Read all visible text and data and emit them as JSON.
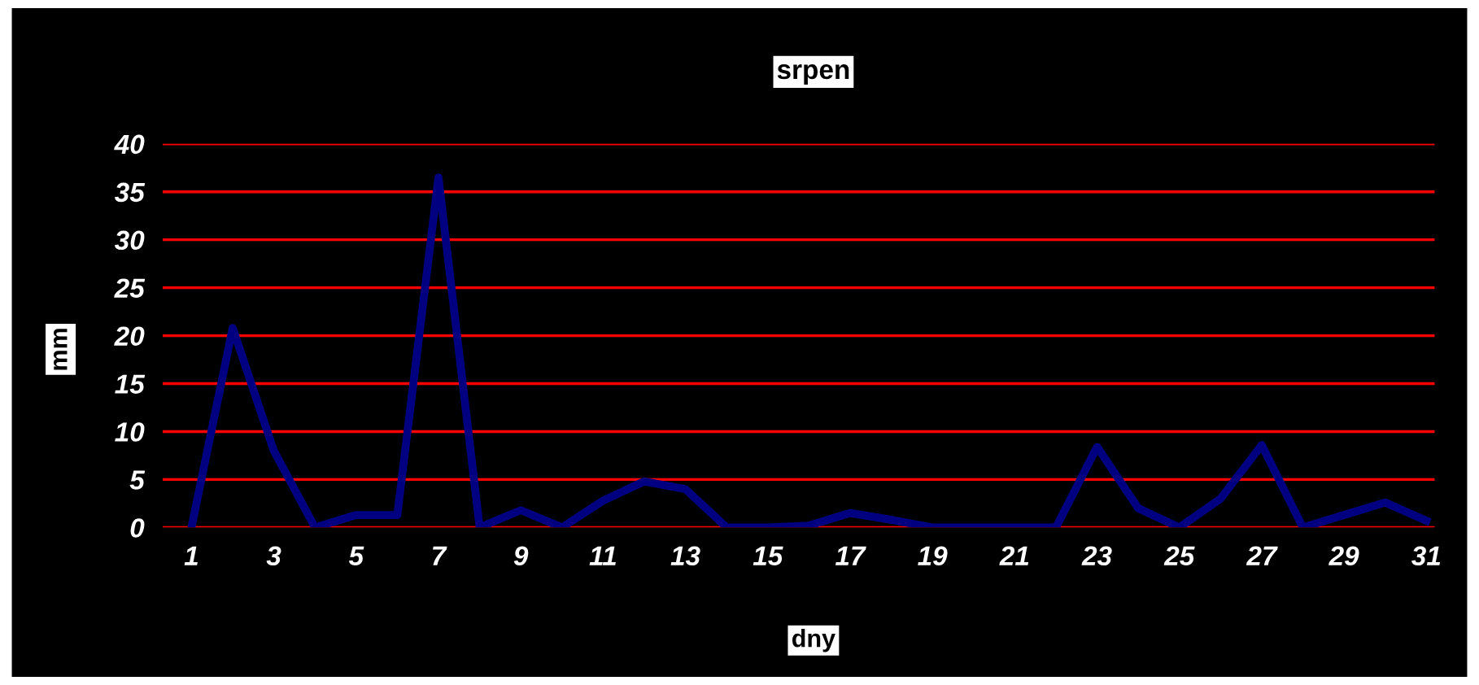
{
  "chart_data": {
    "type": "line",
    "title": "srpen",
    "xlabel": "dny",
    "ylabel": "mm",
    "x": [
      1,
      2,
      3,
      4,
      5,
      6,
      7,
      8,
      9,
      10,
      11,
      12,
      13,
      14,
      15,
      16,
      17,
      18,
      19,
      20,
      21,
      22,
      23,
      24,
      25,
      26,
      27,
      28,
      29,
      30,
      31
    ],
    "series": [
      {
        "color": "#000080",
        "values": [
          0,
          20.8,
          8,
          0,
          1.3,
          1.3,
          36.5,
          0,
          1.8,
          0,
          2.8,
          4.8,
          4,
          0,
          0,
          0.2,
          1.5,
          0.8,
          0,
          0,
          0,
          0,
          8.4,
          2,
          0,
          3,
          8.6,
          0,
          1.3,
          2.6,
          0.7
        ]
      }
    ],
    "xlim": [
      0.3,
      31.2
    ],
    "xticks": [
      1,
      3,
      5,
      7,
      9,
      11,
      13,
      15,
      17,
      19,
      21,
      23,
      25,
      27,
      29,
      31
    ],
    "ylim": [
      0,
      40
    ],
    "yticks": [
      0,
      5,
      10,
      15,
      20,
      25,
      30,
      35,
      40
    ],
    "grid": "y",
    "legend": false,
    "marker": "none",
    "line_style": "solid"
  }
}
